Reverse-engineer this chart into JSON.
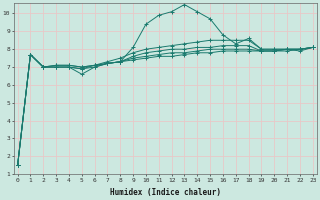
{
  "xlabel": "Humidex (Indice chaleur)",
  "ylabel": "",
  "bg_color": "#cce8e0",
  "line_color": "#1a7a6e",
  "grid_color": "#e8c8c8",
  "x_values": [
    0,
    1,
    2,
    3,
    4,
    5,
    6,
    7,
    8,
    9,
    10,
    11,
    12,
    13,
    14,
    15,
    16,
    17,
    18,
    19,
    20,
    21,
    22,
    23
  ],
  "series": [
    [
      1.5,
      7.7,
      7.0,
      7.0,
      7.0,
      6.6,
      7.0,
      7.2,
      7.3,
      8.1,
      9.4,
      9.9,
      10.1,
      10.5,
      10.1,
      9.7,
      8.8,
      8.3,
      8.6,
      8.0,
      8.0,
      8.0,
      7.9,
      8.1
    ],
    [
      1.5,
      7.7,
      7.0,
      7.0,
      7.0,
      6.9,
      7.1,
      7.3,
      7.5,
      7.8,
      8.0,
      8.1,
      8.2,
      8.3,
      8.4,
      8.5,
      8.5,
      8.5,
      8.5,
      8.0,
      8.0,
      8.0,
      8.0,
      8.1
    ],
    [
      1.5,
      7.7,
      7.0,
      7.0,
      7.0,
      6.9,
      7.0,
      7.2,
      7.3,
      7.6,
      7.8,
      7.9,
      8.0,
      8.0,
      8.1,
      8.1,
      8.2,
      8.2,
      8.2,
      7.9,
      7.9,
      7.9,
      8.0,
      8.1
    ],
    [
      1.5,
      7.7,
      7.0,
      7.1,
      7.1,
      7.0,
      7.1,
      7.2,
      7.3,
      7.5,
      7.6,
      7.7,
      7.8,
      7.8,
      7.9,
      8.0,
      8.0,
      8.0,
      8.0,
      7.9,
      7.9,
      8.0,
      8.0,
      8.1
    ],
    [
      1.5,
      7.7,
      7.0,
      7.1,
      7.1,
      7.0,
      7.1,
      7.2,
      7.3,
      7.4,
      7.5,
      7.6,
      7.6,
      7.7,
      7.8,
      7.8,
      7.9,
      7.9,
      7.9,
      7.9,
      7.9,
      8.0,
      8.0,
      8.1
    ]
  ],
  "ylim": [
    1,
    10.6
  ],
  "xlim": [
    -0.3,
    23.3
  ],
  "yticks": [
    1,
    2,
    3,
    4,
    5,
    6,
    7,
    8,
    9,
    10
  ],
  "xticks": [
    0,
    1,
    2,
    3,
    4,
    5,
    6,
    7,
    8,
    9,
    10,
    11,
    12,
    13,
    14,
    15,
    16,
    17,
    18,
    19,
    20,
    21,
    22,
    23
  ],
  "xlabel_fontsize": 5.5,
  "tick_fontsize": 4.5
}
